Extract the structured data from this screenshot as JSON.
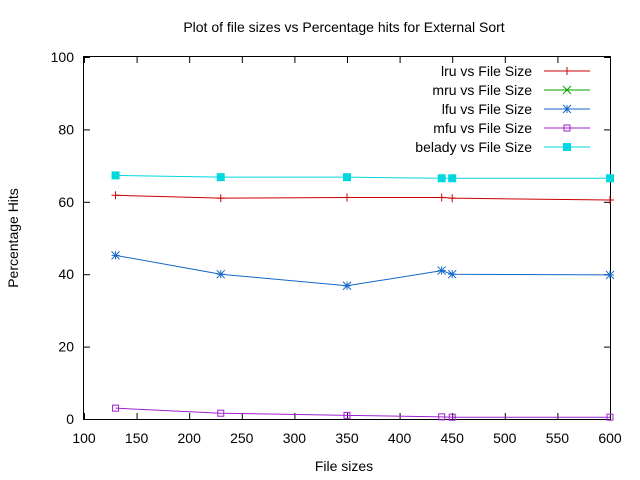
{
  "chart_data": {
    "type": "line",
    "title": "Plot of file sizes vs Percentage hits for External Sort",
    "xlabel": "File sizes",
    "ylabel": "Percentage Hits",
    "xlim": [
      100,
      600
    ],
    "ylim": [
      0,
      100
    ],
    "xticks": [
      100,
      150,
      200,
      250,
      300,
      350,
      400,
      450,
      500,
      550,
      600
    ],
    "yticks": [
      0,
      20,
      40,
      60,
      80,
      100
    ],
    "grid": false,
    "legend_position": "top-right",
    "series": [
      {
        "name": "lru vs File Size",
        "color": "#cc0000",
        "marker": "plus",
        "x": [
          130,
          230,
          350,
          440,
          450,
          600
        ],
        "y": [
          61.8,
          61.0,
          61.2,
          61.2,
          61.0,
          60.5
        ]
      },
      {
        "name": "mru vs File Size",
        "color": "#00a000",
        "marker": "cross",
        "x": [],
        "y": []
      },
      {
        "name": "lfu vs File Size",
        "color": "#1066c8",
        "marker": "star",
        "x": [
          130,
          230,
          350,
          440,
          450,
          600
        ],
        "y": [
          45.2,
          40.0,
          36.8,
          41.0,
          40.0,
          39.8
        ]
      },
      {
        "name": "mfu vs File Size",
        "color": "#a020d0",
        "marker": "square-open",
        "x": [
          130,
          230,
          350,
          440,
          450,
          600
        ],
        "y": [
          3.0,
          1.6,
          1.0,
          0.6,
          0.5,
          0.5
        ]
      },
      {
        "name": "belady vs File Size",
        "color": "#00d8e0",
        "marker": "square-filled",
        "x": [
          130,
          230,
          350,
          440,
          450,
          600
        ],
        "y": [
          67.3,
          66.8,
          66.8,
          66.5,
          66.5,
          66.5
        ]
      }
    ]
  }
}
